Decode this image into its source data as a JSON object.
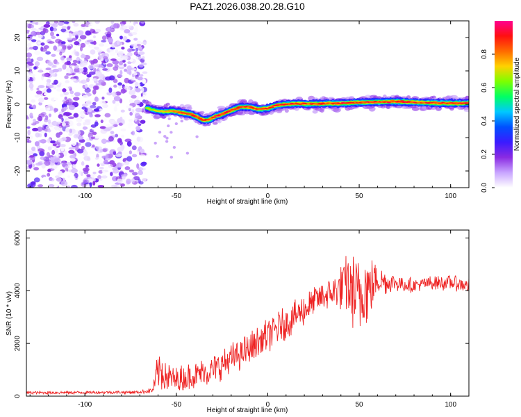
{
  "title": "PAZ1.2026.038.20.28.G10",
  "colors": {
    "snr_line": "#ee2222",
    "lowamp_purple": "#7a1fe6",
    "colormap": [
      "#ffffff",
      "#c8a4ff",
      "#8a2be2",
      "#3a1bff",
      "#0050ff",
      "#00c8ff",
      "#00ff64",
      "#7cff00",
      "#ffd200",
      "#ff6a00",
      "#ff1010",
      "#ff0090"
    ]
  },
  "chart_data": [
    {
      "type": "heatmap",
      "panel": "spectrogram",
      "xlabel": "Height of straight line (km)",
      "ylabel": "Frequency (Hz)",
      "xlim": [
        -132,
        110
      ],
      "ylim": [
        -25,
        25
      ],
      "xticks": [
        -100,
        -50,
        0,
        50,
        100
      ],
      "xtick_labels": [
        "-100",
        "-50",
        "0",
        "50",
        "100"
      ],
      "yticks": [
        -20,
        -10,
        0,
        10,
        20
      ],
      "ytick_labels": [
        "-20",
        "-10",
        "0",
        "10",
        "20"
      ],
      "grid": false,
      "noise_region_x": [
        -132,
        -67
      ],
      "noise_amplitude_range": [
        0.0,
        0.25
      ],
      "ridge": {
        "x": [
          -67,
          -62,
          -57,
          -52,
          -47,
          -42,
          -38,
          -35,
          -32,
          -28,
          -24,
          -20,
          -15,
          -10,
          -5,
          0,
          5,
          10,
          15,
          20,
          30,
          40,
          50,
          60,
          70,
          80,
          90,
          100,
          110
        ],
        "y": [
          -1.0,
          -1.8,
          -2.2,
          -2.0,
          -2.5,
          -3.0,
          -4.0,
          -4.8,
          -4.6,
          -3.5,
          -2.8,
          -1.8,
          -0.8,
          -0.8,
          -1.5,
          -1.2,
          -0.3,
          0.0,
          0.2,
          0.1,
          0.2,
          0.3,
          0.5,
          0.7,
          0.8,
          0.6,
          0.4,
          0.3,
          0.3
        ],
        "peak_amplitude": 1.0
      },
      "colorbar": {
        "label": "Normalized spectral amplitude",
        "range": [
          0,
          1
        ],
        "ticks": [
          0.0,
          0.2,
          0.4,
          0.6,
          0.8
        ],
        "tick_labels": [
          "0.0",
          "0.2",
          "0.4",
          "0.6",
          "0.8"
        ]
      }
    },
    {
      "type": "line",
      "panel": "snr",
      "xlabel": "Height of straight line (km)",
      "ylabel": "SNR (10 * v/v)",
      "xlim": [
        -132,
        110
      ],
      "ylim": [
        0,
        6300
      ],
      "xticks": [
        -100,
        -50,
        0,
        50,
        100
      ],
      "xtick_labels": [
        "-100",
        "-50",
        "0",
        "50",
        "100"
      ],
      "yticks": [
        0,
        2000,
        4000,
        6000
      ],
      "ytick_labels": [
        "0",
        "2000",
        "4000",
        "6000"
      ],
      "grid": false,
      "series": [
        {
          "color": "#ee2222",
          "envelope": {
            "x": [
              -132,
              -100,
              -70,
              -63,
              -60,
              -58,
              -55,
              -50,
              -40,
              -30,
              -20,
              -10,
              0,
              10,
              20,
              28,
              35,
              40,
              43,
              46,
              50,
              53,
              56,
              60,
              65,
              70,
              80,
              90,
              100,
              110
            ],
            "mean": [
              130,
              140,
              150,
              220,
              900,
              1000,
              700,
              600,
              800,
              1000,
              1400,
              1800,
              2300,
              2800,
              3300,
              3700,
              3900,
              4100,
              4300,
              4000,
              3800,
              4100,
              4100,
              4500,
              4300,
              4300,
              4200,
              4300,
              4300,
              4200
            ],
            "spread": [
              60,
              60,
              60,
              120,
              900,
              900,
              650,
              550,
              550,
              600,
              650,
              650,
              700,
              700,
              650,
              600,
              600,
              900,
              1300,
              1500,
              1800,
              1700,
              1300,
              700,
              450,
              350,
              300,
              300,
              300,
              300
            ]
          }
        }
      ]
    }
  ]
}
